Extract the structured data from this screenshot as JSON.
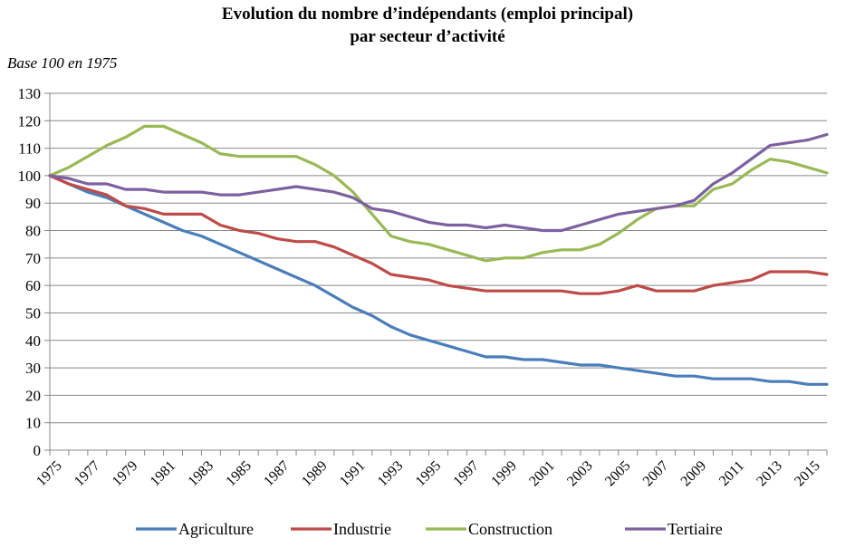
{
  "chart_data": {
    "type": "line",
    "title": "Evolution du nombre d’indépendants (emploi principal)",
    "title_line2": "par secteur d’activité",
    "subtitle": "Base 100 en 1975",
    "xlabel": "",
    "ylabel": "",
    "ylim": [
      0,
      130
    ],
    "yticks": [
      0,
      10,
      20,
      30,
      40,
      50,
      60,
      70,
      80,
      90,
      100,
      110,
      120,
      130
    ],
    "grid": true,
    "legend_position": "bottom",
    "x": [
      1975,
      1976,
      1977,
      1978,
      1979,
      1980,
      1981,
      1982,
      1983,
      1984,
      1985,
      1986,
      1987,
      1988,
      1989,
      1990,
      1991,
      1992,
      1993,
      1994,
      1995,
      1996,
      1997,
      1998,
      1999,
      2000,
      2001,
      2002,
      2003,
      2004,
      2005,
      2006,
      2007,
      2008,
      2009,
      2010,
      2011,
      2012,
      2013,
      2014,
      2015,
      2016
    ],
    "xtick_labels": [
      "1975",
      "1977",
      "1979",
      "1981",
      "1983",
      "1985",
      "1987",
      "1989",
      "1991",
      "1993",
      "1995",
      "1997",
      "1999",
      "2001",
      "2003",
      "2005",
      "2007",
      "2009",
      "2011",
      "2013",
      "2015"
    ],
    "series": [
      {
        "name": "Agriculture",
        "color": "#4a7ebb",
        "values": [
          100,
          97,
          94,
          92,
          89,
          86,
          83,
          80,
          78,
          75,
          72,
          69,
          66,
          63,
          60,
          56,
          52,
          49,
          45,
          42,
          40,
          38,
          36,
          34,
          34,
          33,
          33,
          32,
          31,
          31,
          30,
          29,
          28,
          27,
          27,
          26,
          26,
          26,
          25,
          25,
          24,
          24
        ]
      },
      {
        "name": "Industrie",
        "color": "#be4b48",
        "values": [
          100,
          97,
          95,
          93,
          89,
          88,
          86,
          86,
          86,
          82,
          80,
          79,
          77,
          76,
          76,
          74,
          71,
          68,
          64,
          63,
          62,
          60,
          59,
          58,
          58,
          58,
          58,
          58,
          57,
          57,
          58,
          60,
          58,
          58,
          58,
          60,
          61,
          62,
          65,
          65,
          65,
          64
        ]
      },
      {
        "name": "Construction",
        "color": "#98b954",
        "values": [
          100,
          103,
          107,
          111,
          114,
          118,
          118,
          115,
          112,
          108,
          107,
          107,
          107,
          107,
          104,
          100,
          94,
          86,
          78,
          76,
          75,
          73,
          71,
          69,
          70,
          70,
          72,
          73,
          73,
          75,
          79,
          84,
          88,
          89,
          89,
          95,
          97,
          102,
          106,
          105,
          103,
          101
        ]
      },
      {
        "name": "Tertiaire",
        "color": "#7d60a0",
        "values": [
          100,
          99,
          97,
          97,
          95,
          95,
          94,
          94,
          94,
          93,
          93,
          94,
          95,
          96,
          95,
          94,
          92,
          88,
          87,
          85,
          83,
          82,
          82,
          81,
          82,
          81,
          80,
          80,
          82,
          84,
          86,
          87,
          88,
          89,
          91,
          97,
          101,
          106,
          111,
          112,
          113,
          115
        ]
      }
    ]
  }
}
